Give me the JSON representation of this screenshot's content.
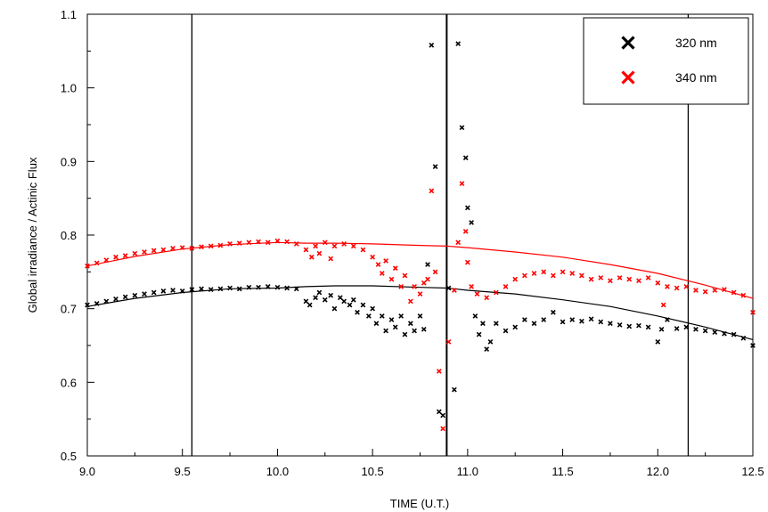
{
  "chart_data": {
    "type": "scatter",
    "title": "",
    "xlabel": "TIME (U.T.)",
    "ylabel": "Global irradiance / Actinic Flux",
    "xlim": [
      9.0,
      12.5
    ],
    "ylim": [
      0.5,
      1.1
    ],
    "x_ticks": [
      9.0,
      9.5,
      10.0,
      10.5,
      11.0,
      11.5,
      12.0,
      12.5
    ],
    "x_tick_labels": [
      "9.0",
      "9.5",
      "10.0",
      "10.5",
      "11.0",
      "11.5",
      "12.0",
      "12.5"
    ],
    "y_ticks": [
      0.5,
      0.6,
      0.7,
      0.8,
      0.9,
      1.0,
      1.1
    ],
    "y_tick_labels": [
      "0.5",
      "0.6",
      "0.7",
      "0.8",
      "0.9",
      "1.0",
      "1.1"
    ],
    "legend_position": "top-right",
    "grid": false,
    "vertical_lines": [
      9.55,
      10.89,
      12.16
    ],
    "series": [
      {
        "name": "320 nm",
        "color": "#000000",
        "marker": "x",
        "x": [
          9.0,
          9.05,
          9.1,
          9.15,
          9.2,
          9.25,
          9.3,
          9.35,
          9.4,
          9.45,
          9.5,
          9.55,
          9.6,
          9.65,
          9.7,
          9.75,
          9.8,
          9.85,
          9.9,
          9.95,
          10.0,
          10.05,
          10.1,
          10.15,
          10.17,
          10.2,
          10.22,
          10.25,
          10.28,
          10.3,
          10.33,
          10.35,
          10.38,
          10.4,
          10.42,
          10.45,
          10.48,
          10.5,
          10.52,
          10.55,
          10.57,
          10.6,
          10.62,
          10.65,
          10.67,
          10.7,
          10.72,
          10.75,
          10.77,
          10.79,
          10.81,
          10.83,
          10.85,
          10.87,
          10.9,
          10.93,
          10.95,
          10.97,
          10.99,
          11.0,
          11.02,
          11.04,
          11.06,
          11.08,
          11.1,
          11.12,
          11.15,
          11.2,
          11.25,
          11.3,
          11.35,
          11.4,
          11.45,
          11.5,
          11.55,
          11.6,
          11.65,
          11.7,
          11.75,
          11.8,
          11.85,
          11.9,
          11.95,
          12.0,
          12.02,
          12.05,
          12.1,
          12.15,
          12.2,
          12.25,
          12.3,
          12.35,
          12.4,
          12.45,
          12.5
        ],
        "values": [
          0.705,
          0.707,
          0.71,
          0.713,
          0.716,
          0.718,
          0.72,
          0.722,
          0.724,
          0.725,
          0.724,
          0.726,
          0.727,
          0.726,
          0.727,
          0.728,
          0.727,
          0.729,
          0.729,
          0.73,
          0.729,
          0.728,
          0.727,
          0.71,
          0.705,
          0.715,
          0.722,
          0.712,
          0.718,
          0.7,
          0.715,
          0.71,
          0.705,
          0.712,
          0.695,
          0.705,
          0.69,
          0.7,
          0.68,
          0.69,
          0.67,
          0.685,
          0.675,
          0.69,
          0.665,
          0.68,
          0.67,
          0.69,
          0.672,
          0.76,
          1.058,
          0.893,
          0.56,
          0.555,
          0.728,
          0.59,
          1.06,
          0.946,
          0.905,
          0.837,
          0.817,
          0.69,
          0.665,
          0.68,
          0.645,
          0.655,
          0.68,
          0.67,
          0.675,
          0.685,
          0.68,
          0.685,
          0.695,
          0.682,
          0.685,
          0.683,
          0.686,
          0.682,
          0.68,
          0.678,
          0.676,
          0.677,
          0.675,
          0.655,
          0.672,
          0.685,
          0.673,
          0.675,
          0.672,
          0.67,
          0.668,
          0.666,
          0.665,
          0.66,
          0.65
        ]
      },
      {
        "name": "340 nm",
        "color": "#ff0000",
        "marker": "x",
        "x": [
          9.0,
          9.05,
          9.1,
          9.15,
          9.2,
          9.25,
          9.3,
          9.35,
          9.4,
          9.45,
          9.5,
          9.55,
          9.6,
          9.65,
          9.7,
          9.75,
          9.8,
          9.85,
          9.9,
          9.95,
          10.0,
          10.05,
          10.1,
          10.15,
          10.18,
          10.2,
          10.22,
          10.25,
          10.28,
          10.3,
          10.35,
          10.4,
          10.45,
          10.5,
          10.53,
          10.55,
          10.57,
          10.6,
          10.62,
          10.65,
          10.67,
          10.7,
          10.72,
          10.75,
          10.77,
          10.79,
          10.81,
          10.83,
          10.85,
          10.87,
          10.9,
          10.93,
          10.95,
          10.97,
          10.99,
          11.0,
          11.02,
          11.05,
          11.1,
          11.15,
          11.2,
          11.25,
          11.3,
          11.35,
          11.4,
          11.45,
          11.5,
          11.55,
          11.6,
          11.65,
          11.7,
          11.75,
          11.8,
          11.85,
          11.9,
          11.95,
          12.0,
          12.03,
          12.05,
          12.1,
          12.15,
          12.2,
          12.25,
          12.3,
          12.35,
          12.4,
          12.45,
          12.5
        ],
        "values": [
          0.758,
          0.762,
          0.766,
          0.77,
          0.772,
          0.775,
          0.777,
          0.779,
          0.78,
          0.782,
          0.783,
          0.782,
          0.784,
          0.785,
          0.786,
          0.788,
          0.789,
          0.79,
          0.791,
          0.79,
          0.792,
          0.791,
          0.788,
          0.78,
          0.77,
          0.785,
          0.775,
          0.79,
          0.768,
          0.785,
          0.788,
          0.785,
          0.78,
          0.77,
          0.76,
          0.748,
          0.765,
          0.74,
          0.755,
          0.73,
          0.745,
          0.71,
          0.73,
          0.72,
          0.735,
          0.74,
          0.86,
          0.75,
          0.615,
          0.537,
          0.655,
          0.725,
          0.79,
          0.87,
          0.805,
          0.763,
          0.73,
          0.72,
          0.715,
          0.722,
          0.73,
          0.74,
          0.745,
          0.748,
          0.75,
          0.745,
          0.75,
          0.748,
          0.745,
          0.74,
          0.742,
          0.738,
          0.742,
          0.74,
          0.738,
          0.742,
          0.735,
          0.705,
          0.73,
          0.728,
          0.73,
          0.725,
          0.723,
          0.725,
          0.726,
          0.722,
          0.718,
          0.695
        ]
      }
    ],
    "reference_curves": [
      {
        "color": "#000000",
        "x": [
          9.0,
          9.25,
          9.5,
          9.75,
          10.0,
          10.15,
          10.3,
          10.5,
          10.75,
          10.89,
          11.0,
          11.25,
          11.5,
          11.75,
          12.0,
          12.25,
          12.5
        ],
        "values": [
          0.703,
          0.714,
          0.722,
          0.727,
          0.728,
          0.73,
          0.731,
          0.731,
          0.729,
          0.728,
          0.725,
          0.72,
          0.712,
          0.703,
          0.69,
          0.675,
          0.658
        ]
      },
      {
        "color": "#ff0000",
        "x": [
          9.0,
          9.25,
          9.5,
          9.75,
          10.0,
          10.15,
          10.3,
          10.5,
          10.75,
          10.89,
          11.0,
          11.25,
          11.5,
          11.75,
          12.0,
          12.25,
          12.5
        ],
        "values": [
          0.758,
          0.771,
          0.781,
          0.787,
          0.79,
          0.789,
          0.789,
          0.788,
          0.786,
          0.785,
          0.783,
          0.777,
          0.77,
          0.76,
          0.748,
          0.732,
          0.714
        ]
      }
    ]
  }
}
